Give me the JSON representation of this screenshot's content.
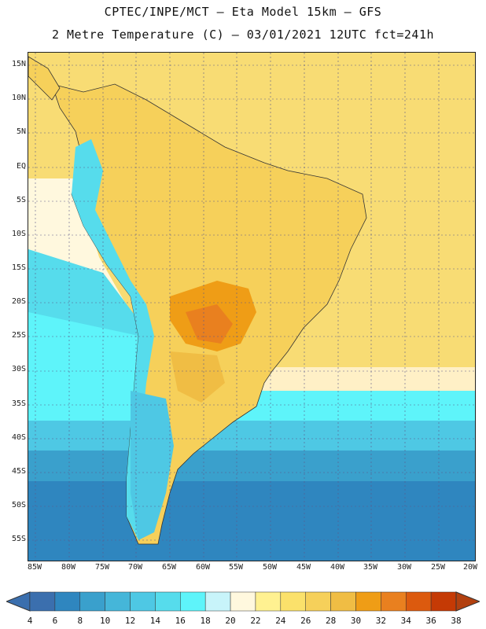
{
  "title": {
    "line1": "CPTEC/INPE/MCT –  Eta Model 15km – GFS",
    "line2": "2 Metre Temperature (C) – 03/01/2021 12UTC fct=241h"
  },
  "lat_labels": [
    "15N",
    "10N",
    "5N",
    "EQ",
    "5S",
    "10S",
    "15S",
    "20S",
    "25S",
    "30S",
    "35S",
    "40S",
    "45S",
    "50S",
    "55S"
  ],
  "lon_labels": [
    "85W",
    "80W",
    "75W",
    "70W",
    "65W",
    "60W",
    "55W",
    "50W",
    "45W",
    "40W",
    "35W",
    "30W",
    "25W",
    "20W"
  ],
  "colorbar": {
    "labels": [
      "4",
      "6",
      "8",
      "10",
      "12",
      "14",
      "16",
      "18",
      "20",
      "22",
      "24",
      "26",
      "28",
      "30",
      "32",
      "34",
      "36",
      "38"
    ],
    "colors": [
      "#3b6fae",
      "#2f86bf",
      "#3aa0cc",
      "#45b6d9",
      "#4ec8e4",
      "#56dcec",
      "#5ef4fa",
      "#c8f4fa",
      "#fff8de",
      "#fff191",
      "#fbe16b",
      "#f6d05a",
      "#f0bd44",
      "#ef9d16",
      "#e9801f",
      "#dc5a0e",
      "#c53a05",
      "#a8320a"
    ],
    "low_color": "#3b6fae",
    "high_color": "#b2400f"
  }
}
